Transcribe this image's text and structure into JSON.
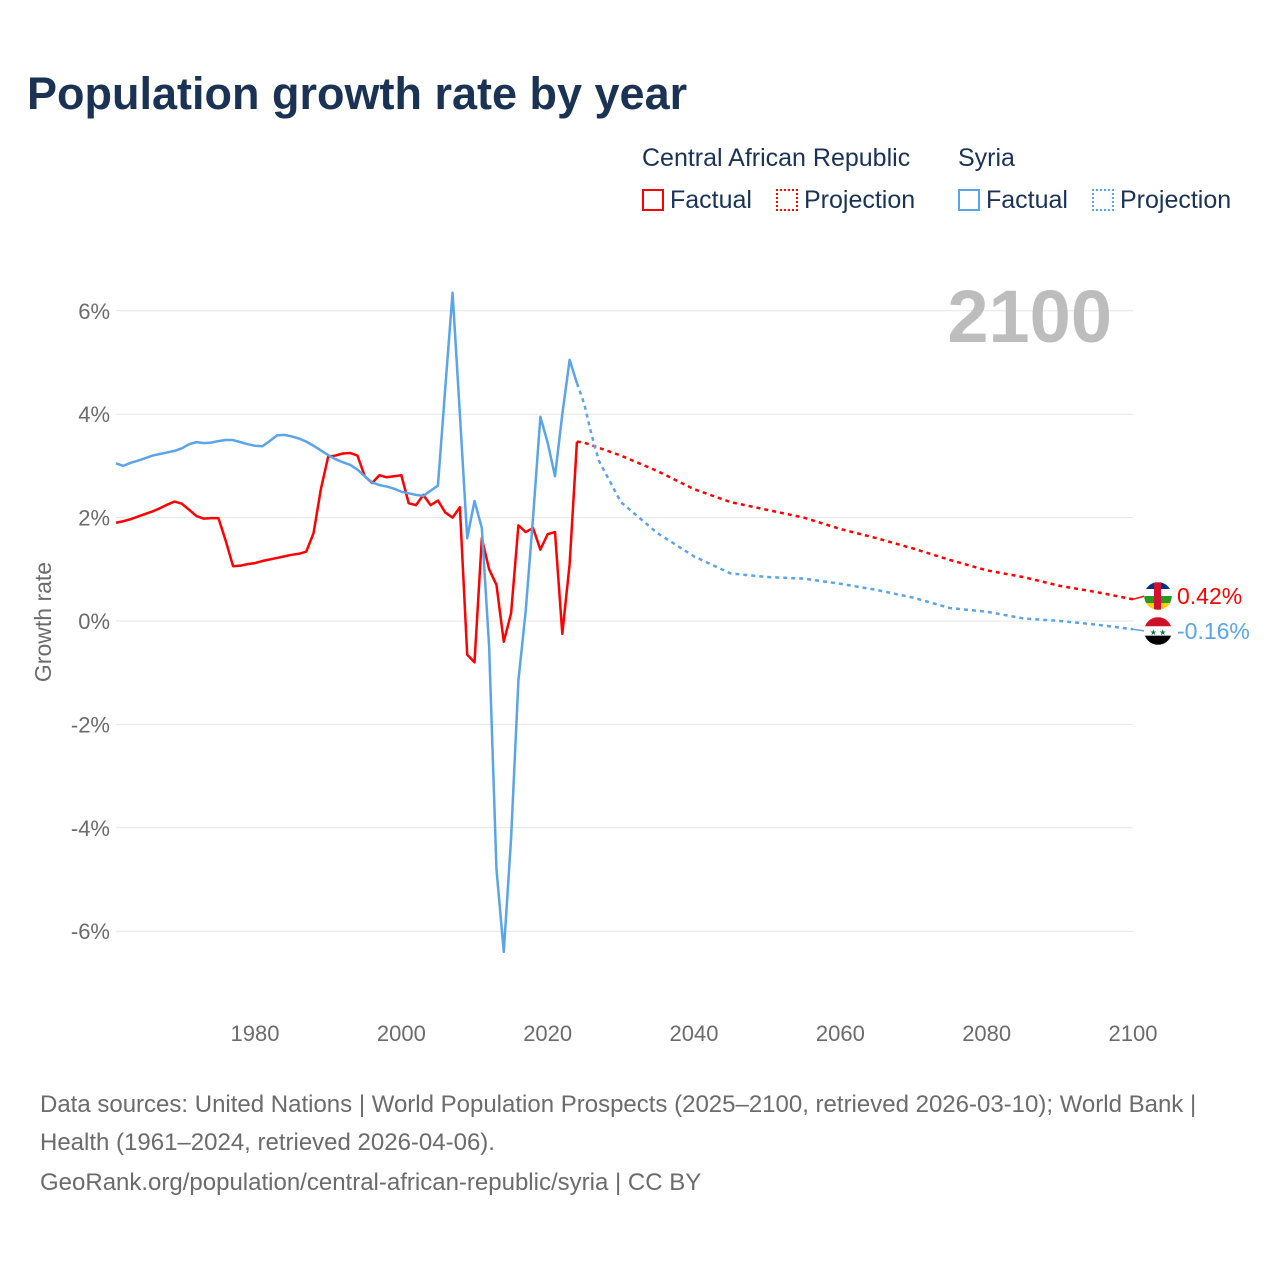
{
  "title": "Population growth rate by year",
  "legend": {
    "groups": [
      {
        "name": "Central African Republic",
        "color": "#ff0000",
        "factual": "Factual",
        "projection": "Projection"
      },
      {
        "name": "Syria",
        "color": "#5ba4e8",
        "factual": "Factual",
        "projection": "Projection"
      }
    ]
  },
  "year_watermark": "2100",
  "footer": {
    "sources": "Data sources: United Nations | World Population Prospects (2025–2100, retrieved 2026-03-10); World Bank | Health (1961–2024, retrieved 2026-04-06).",
    "credit": "GeoRank.org/population/central-african-republic/syria | CC BY"
  },
  "chart_data": {
    "type": "line",
    "title": "Population growth rate by year",
    "xlabel": "",
    "ylabel": "Growth rate",
    "xlim": [
      1961,
      2100
    ],
    "ylim": [
      -7,
      7
    ],
    "xticks": [
      1980,
      2000,
      2020,
      2040,
      2060,
      2080,
      2100
    ],
    "yticks": [
      -6,
      -4,
      -2,
      0,
      2,
      4,
      6
    ],
    "ytick_labels": [
      "-6%",
      "-4%",
      "-2%",
      "0%",
      "2%",
      "4%",
      "6%"
    ],
    "grid": true,
    "series": [
      {
        "name": "Central African Republic",
        "color": "#ff0000",
        "end_label": "0.42%",
        "factual": {
          "x": [
            1961,
            1962,
            1963,
            1964,
            1965,
            1966,
            1967,
            1968,
            1969,
            1970,
            1971,
            1972,
            1973,
            1974,
            1975,
            1976,
            1977,
            1978,
            1979,
            1980,
            1981,
            1982,
            1983,
            1984,
            1985,
            1986,
            1987,
            1988,
            1989,
            1990,
            1991,
            1992,
            1993,
            1994,
            1995,
            1996,
            1997,
            1998,
            1999,
            2000,
            2001,
            2002,
            2003,
            2004,
            2005,
            2006,
            2007,
            2008,
            2009,
            2010,
            2011,
            2012,
            2013,
            2014,
            2015,
            2016,
            2017,
            2018,
            2019,
            2020,
            2021,
            2022,
            2023,
            2024
          ],
          "y": [
            1.9,
            1.93,
            1.97,
            2.02,
            2.07,
            2.12,
            2.18,
            2.25,
            2.31,
            2.27,
            2.15,
            2.03,
            1.98,
            1.99,
            1.99,
            1.55,
            1.06,
            1.07,
            1.1,
            1.12,
            1.16,
            1.19,
            1.22,
            1.25,
            1.28,
            1.3,
            1.34,
            1.7,
            2.55,
            3.18,
            3.2,
            3.24,
            3.25,
            3.2,
            2.8,
            2.67,
            2.82,
            2.78,
            2.8,
            2.82,
            2.28,
            2.24,
            2.44,
            2.24,
            2.33,
            2.1,
            2.0,
            2.2,
            -0.65,
            -0.8,
            1.6,
            1.0,
            0.7,
            -0.4,
            0.15,
            1.85,
            1.72,
            1.8,
            1.38,
            1.68,
            1.72,
            -0.25,
            1.1,
            3.47
          ]
        },
        "projection": {
          "x": [
            2024,
            2025,
            2030,
            2035,
            2040,
            2045,
            2050,
            2055,
            2060,
            2065,
            2070,
            2075,
            2080,
            2085,
            2090,
            2095,
            2100
          ],
          "y": [
            3.47,
            3.45,
            3.2,
            2.9,
            2.55,
            2.3,
            2.15,
            2.0,
            1.78,
            1.6,
            1.4,
            1.18,
            0.98,
            0.85,
            0.68,
            0.56,
            0.42
          ]
        }
      },
      {
        "name": "Syria",
        "color": "#5ba4e8",
        "end_label": "-0.16%",
        "factual": {
          "x": [
            1961,
            1962,
            1963,
            1964,
            1965,
            1966,
            1967,
            1968,
            1969,
            1970,
            1971,
            1972,
            1973,
            1974,
            1975,
            1976,
            1977,
            1978,
            1979,
            1980,
            1981,
            1982,
            1983,
            1984,
            1985,
            1986,
            1987,
            1988,
            1989,
            1990,
            1991,
            1992,
            1993,
            1994,
            1995,
            1996,
            1997,
            1998,
            1999,
            2000,
            2001,
            2002,
            2003,
            2004,
            2005,
            2006,
            2007,
            2008,
            2009,
            2010,
            2011,
            2012,
            2013,
            2014,
            2015,
            2016,
            2017,
            2018,
            2019,
            2020,
            2021,
            2022,
            2023,
            2024
          ],
          "y": [
            3.05,
            3.0,
            3.06,
            3.1,
            3.15,
            3.2,
            3.23,
            3.26,
            3.29,
            3.34,
            3.42,
            3.46,
            3.44,
            3.45,
            3.48,
            3.5,
            3.5,
            3.46,
            3.42,
            3.39,
            3.38,
            3.48,
            3.59,
            3.6,
            3.57,
            3.53,
            3.47,
            3.39,
            3.3,
            3.21,
            3.13,
            3.07,
            3.02,
            2.93,
            2.8,
            2.68,
            2.63,
            2.6,
            2.56,
            2.5,
            2.47,
            2.44,
            2.42,
            2.52,
            2.62,
            4.5,
            6.35,
            4.0,
            1.6,
            2.32,
            1.8,
            -0.5,
            -4.8,
            -6.4,
            -4.2,
            -1.15,
            0.2,
            2.0,
            3.95,
            3.45,
            2.8,
            4.0,
            5.05,
            4.6
          ]
        },
        "projection": {
          "x": [
            2024,
            2025,
            2026,
            2027,
            2030,
            2035,
            2040,
            2045,
            2050,
            2055,
            2060,
            2065,
            2070,
            2075,
            2080,
            2085,
            2090,
            2095,
            2100
          ],
          "y": [
            4.6,
            4.2,
            3.6,
            3.1,
            2.3,
            1.7,
            1.25,
            0.92,
            0.85,
            0.82,
            0.72,
            0.6,
            0.45,
            0.25,
            0.18,
            0.05,
            0.0,
            -0.07,
            -0.16
          ]
        }
      }
    ]
  }
}
